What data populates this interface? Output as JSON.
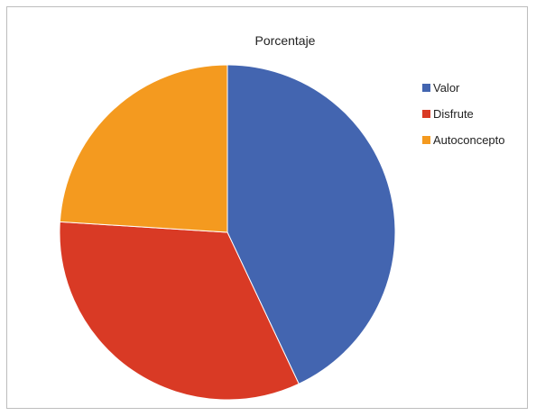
{
  "chart_data": {
    "type": "pie",
    "title": "Porcentaje",
    "legend_position": "right",
    "categories": [
      "Valor",
      "Disfrute",
      "Autoconcepto"
    ],
    "values": [
      43,
      33,
      24
    ],
    "colors": [
      "#4365b0",
      "#d93a25",
      "#f49a1f"
    ]
  }
}
